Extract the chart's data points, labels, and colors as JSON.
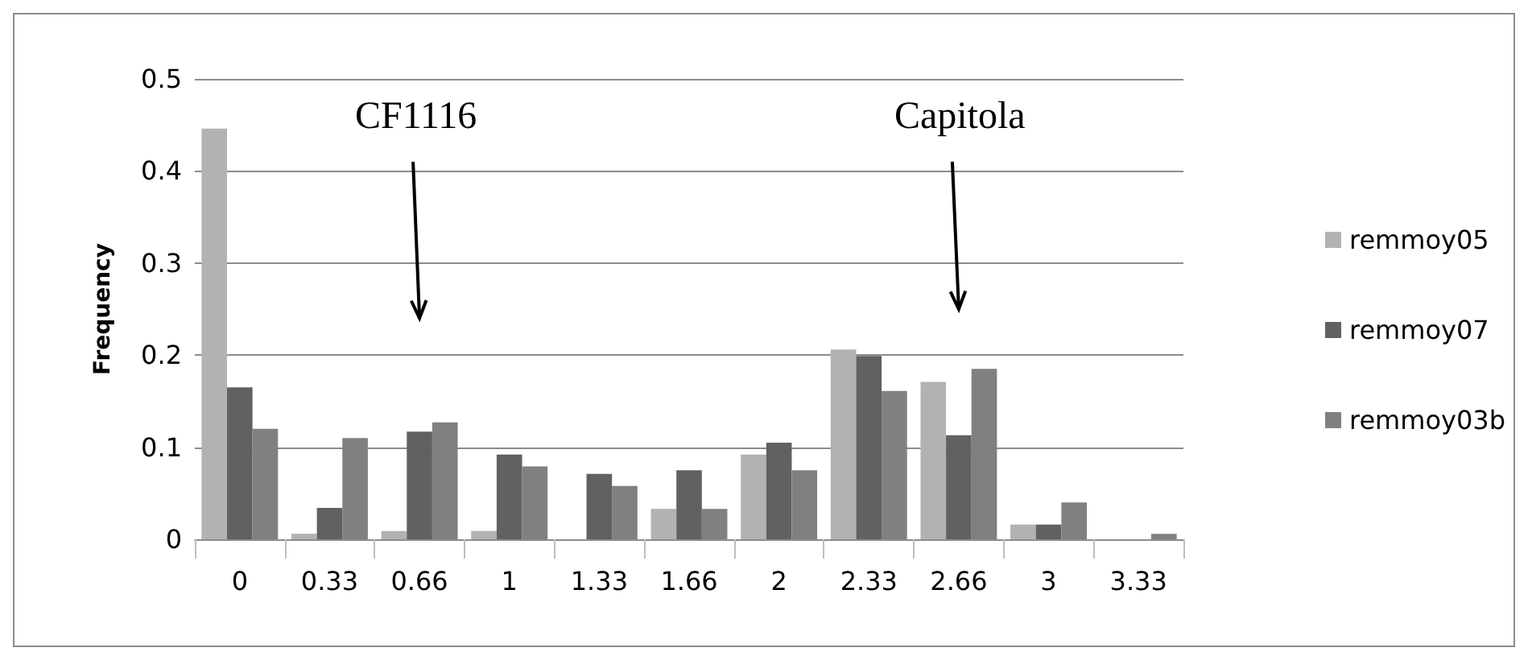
{
  "chart_data": {
    "type": "bar",
    "ylabel": "Frequency",
    "categories": [
      "0",
      "0.33",
      "0.66",
      "1",
      "1.33",
      "1.66",
      "2",
      "2.33",
      "2.66",
      "3",
      "3.33"
    ],
    "series": [
      {
        "name": "remmoy05",
        "color": "#b2b2b2",
        "values": [
          0.446,
          0.006,
          0.009,
          0.009,
          0,
          0.033,
          0.092,
          0.206,
          0.171,
          0.016,
          0
        ]
      },
      {
        "name": "remmoy07",
        "color": "#616161",
        "values": [
          0.165,
          0.034,
          0.117,
          0.092,
          0.071,
          0.075,
          0.105,
          0.199,
          0.113,
          0.016,
          0
        ]
      },
      {
        "name": "remmoy03b",
        "color": "#808080",
        "values": [
          0.12,
          0.11,
          0.127,
          0.079,
          0.058,
          0.033,
          0.075,
          0.161,
          0.185,
          0.04,
          0.006
        ]
      }
    ],
    "ylim": [
      0,
      0.5
    ],
    "yticks": [
      0,
      0.1,
      0.2,
      0.3,
      0.4,
      0.5
    ],
    "grid": "y",
    "legend": "right",
    "annotations": [
      "CF1116",
      "Capitola"
    ]
  }
}
